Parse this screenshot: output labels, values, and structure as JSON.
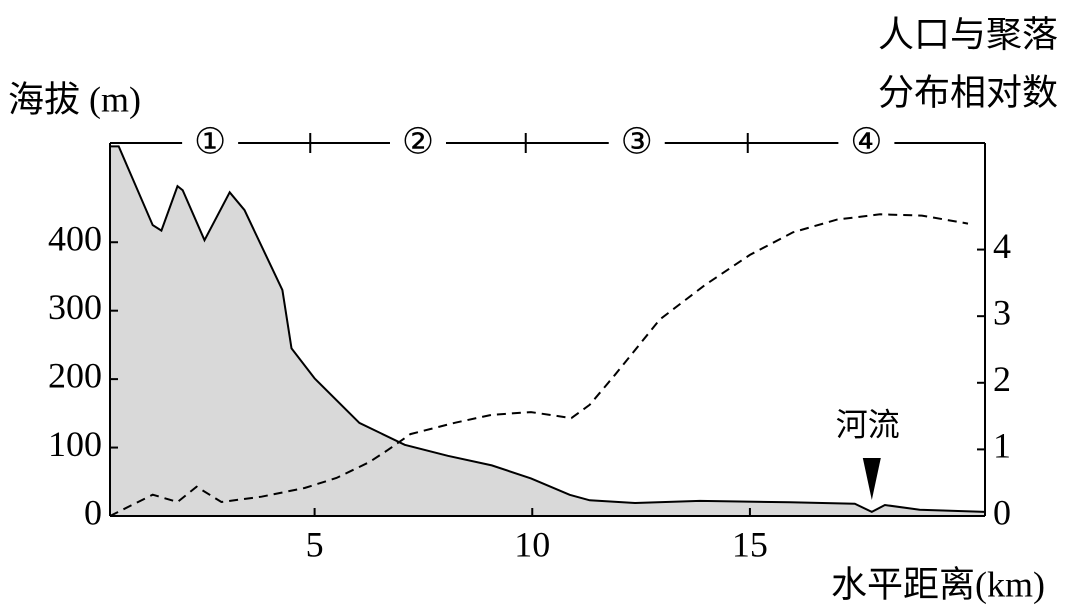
{
  "chart_data": {
    "type": "area_line",
    "y_label": "海拔 (m)",
    "y2_label": [
      "人口与聚落",
      "分布相对数"
    ],
    "x_label": "水平距离(km)",
    "xlim": [
      0.3,
      20.4
    ],
    "xticks": [
      5,
      10,
      15
    ],
    "ylim": [
      0,
      545
    ],
    "yticks": [
      0,
      100,
      200,
      300,
      400
    ],
    "y2lim": [
      0,
      5.6
    ],
    "y2ticks": [
      0,
      1,
      2,
      3,
      4
    ],
    "series": [
      {
        "name": "海拔",
        "color": "#d9d9d9",
        "x": [
          0.3,
          0.5,
          1.28,
          1.48,
          1.85,
          1.97,
          2.47,
          3.05,
          3.39,
          4.26,
          4.47,
          5,
          6.03,
          7.07,
          8.06,
          9.07,
          9.97,
          10.86,
          11.32,
          12.36,
          13.85,
          15.92,
          17.41,
          17.8,
          18.1,
          18.9,
          20.4
        ],
        "values": [
          540,
          540,
          425,
          417,
          482,
          476,
          403,
          473,
          447,
          330,
          245,
          201,
          136,
          104,
          88,
          74,
          55,
          31,
          23,
          19,
          22,
          20,
          18,
          6,
          16,
          9,
          6
        ]
      },
      {
        "name": "人口与聚落分布相对数",
        "color": "#000000",
        "axis": "y2",
        "x": [
          0.3,
          1.28,
          1.85,
          2.29,
          2.86,
          3.78,
          4.77,
          5.5,
          6.26,
          6.68,
          7.2,
          8.22,
          9.07,
          9.97,
          10.9,
          11.32,
          11.9,
          12.93,
          13.97,
          15,
          15.99,
          17,
          17.99,
          18.95,
          20.01
        ],
        "values": [
          0,
          0.32,
          0.21,
          0.44,
          0.21,
          0.29,
          0.42,
          0.57,
          0.81,
          0.99,
          1.23,
          1.4,
          1.52,
          1.56,
          1.47,
          1.67,
          2.12,
          2.95,
          3.47,
          3.92,
          4.26,
          4.45,
          4.53,
          4.51,
          4.39
        ]
      }
    ],
    "zones": [
      "①",
      "②",
      "③",
      "④"
    ],
    "zone_boundaries": [
      4.9,
      9.85,
      14.95
    ],
    "annotation": {
      "text": "河流",
      "x": 17.8
    }
  }
}
